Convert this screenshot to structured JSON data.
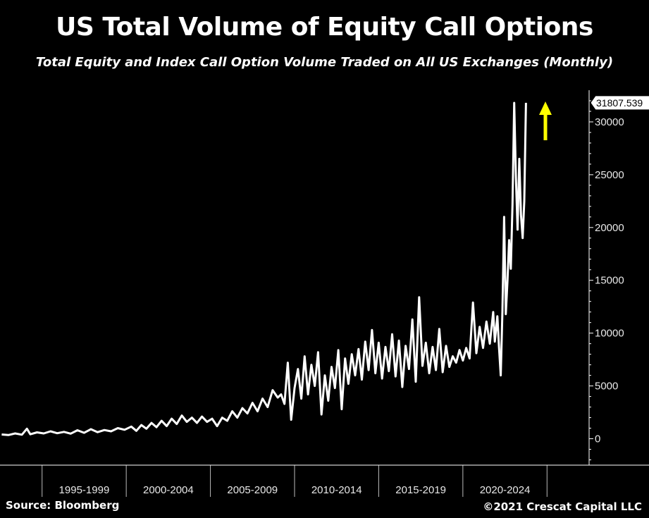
{
  "title": "US Total Volume of Equity Call Options",
  "subtitle": "Total Equity and Index Call Option Volume Traded on All US Exchanges (Monthly)",
  "source": "Source: Bloomberg",
  "copyright": "©2021 Crescat Capital LLC",
  "colors": {
    "background": "#000000",
    "line": "#ffffff",
    "arrow": "#ffff00",
    "axis": "#ffffff"
  },
  "chart_data": {
    "type": "line",
    "x_unit": "year (decimal, monthly points)",
    "xlim": [
      1990.8,
      2025.8
    ],
    "ylim": [
      -2500,
      33000
    ],
    "y_ticks": [
      0,
      5000,
      10000,
      15000,
      20000,
      25000,
      30000
    ],
    "y_tick_labels": [
      "0",
      "5000",
      "10000",
      "15000",
      "20000",
      "25000",
      "30000"
    ],
    "x_periods": [
      {
        "label": "1995-1999",
        "start": 1993.3,
        "end": 1998.3
      },
      {
        "label": "2000-2004",
        "start": 1998.3,
        "end": 2003.3
      },
      {
        "label": "2005-2009",
        "start": 2003.3,
        "end": 2008.3
      },
      {
        "label": "2010-2014",
        "start": 2008.3,
        "end": 2013.3
      },
      {
        "label": "2015-2019",
        "start": 2013.3,
        "end": 2018.3
      },
      {
        "label": "2020-2024",
        "start": 2018.3,
        "end": 2023.3
      }
    ],
    "last_value_label": "31807.539",
    "annotation": "yellow upward arrow",
    "grid": false,
    "series": [
      {
        "values": [
          [
            1990.9,
            400
          ],
          [
            1991.3,
            350
          ],
          [
            1991.7,
            500
          ],
          [
            1992.1,
            380
          ],
          [
            1992.4,
            950
          ],
          [
            1992.6,
            420
          ],
          [
            1993.0,
            600
          ],
          [
            1993.4,
            500
          ],
          [
            1993.8,
            700
          ],
          [
            1994.2,
            520
          ],
          [
            1994.6,
            650
          ],
          [
            1995.0,
            480
          ],
          [
            1995.4,
            800
          ],
          [
            1995.8,
            560
          ],
          [
            1996.2,
            900
          ],
          [
            1996.6,
            620
          ],
          [
            1997.0,
            820
          ],
          [
            1997.4,
            700
          ],
          [
            1997.8,
            1000
          ],
          [
            1998.2,
            850
          ],
          [
            1998.6,
            1150
          ],
          [
            1998.9,
            750
          ],
          [
            1999.2,
            1300
          ],
          [
            1999.5,
            950
          ],
          [
            1999.8,
            1500
          ],
          [
            2000.1,
            1100
          ],
          [
            2000.4,
            1700
          ],
          [
            2000.7,
            1200
          ],
          [
            2001.0,
            1900
          ],
          [
            2001.3,
            1400
          ],
          [
            2001.6,
            2200
          ],
          [
            2001.9,
            1600
          ],
          [
            2002.2,
            2000
          ],
          [
            2002.5,
            1500
          ],
          [
            2002.8,
            2100
          ],
          [
            2003.1,
            1600
          ],
          [
            2003.4,
            1900
          ],
          [
            2003.7,
            1200
          ],
          [
            2004.0,
            2000
          ],
          [
            2004.3,
            1700
          ],
          [
            2004.6,
            2600
          ],
          [
            2004.9,
            2000
          ],
          [
            2005.2,
            2900
          ],
          [
            2005.5,
            2400
          ],
          [
            2005.8,
            3400
          ],
          [
            2006.1,
            2600
          ],
          [
            2006.4,
            3800
          ],
          [
            2006.7,
            3000
          ],
          [
            2007.0,
            4600
          ],
          [
            2007.3,
            3900
          ],
          [
            2007.5,
            4200
          ],
          [
            2007.7,
            3300
          ],
          [
            2007.9,
            7200
          ],
          [
            2008.1,
            1800
          ],
          [
            2008.3,
            4800
          ],
          [
            2008.5,
            6600
          ],
          [
            2008.7,
            3800
          ],
          [
            2008.9,
            7800
          ],
          [
            2009.1,
            4200
          ],
          [
            2009.3,
            7000
          ],
          [
            2009.5,
            5000
          ],
          [
            2009.7,
            8200
          ],
          [
            2009.9,
            2300
          ],
          [
            2010.1,
            6000
          ],
          [
            2010.3,
            3600
          ],
          [
            2010.5,
            6800
          ],
          [
            2010.7,
            4800
          ],
          [
            2010.9,
            8400
          ],
          [
            2011.1,
            2800
          ],
          [
            2011.3,
            7600
          ],
          [
            2011.5,
            5200
          ],
          [
            2011.7,
            8000
          ],
          [
            2011.9,
            6000
          ],
          [
            2012.1,
            8500
          ],
          [
            2012.3,
            5600
          ],
          [
            2012.5,
            9200
          ],
          [
            2012.7,
            6500
          ],
          [
            2012.9,
            10300
          ],
          [
            2013.1,
            6200
          ],
          [
            2013.3,
            9100
          ],
          [
            2013.5,
            5700
          ],
          [
            2013.7,
            8700
          ],
          [
            2013.9,
            6400
          ],
          [
            2014.1,
            9900
          ],
          [
            2014.3,
            5900
          ],
          [
            2014.5,
            9300
          ],
          [
            2014.7,
            4900
          ],
          [
            2014.9,
            8800
          ],
          [
            2015.1,
            6600
          ],
          [
            2015.3,
            11300
          ],
          [
            2015.5,
            5400
          ],
          [
            2015.7,
            13400
          ],
          [
            2015.9,
            6900
          ],
          [
            2016.1,
            9100
          ],
          [
            2016.3,
            6200
          ],
          [
            2016.5,
            8700
          ],
          [
            2016.7,
            6500
          ],
          [
            2016.9,
            10400
          ],
          [
            2017.1,
            6300
          ],
          [
            2017.3,
            8800
          ],
          [
            2017.5,
            6800
          ],
          [
            2017.7,
            7800
          ],
          [
            2017.9,
            7200
          ],
          [
            2018.1,
            8400
          ],
          [
            2018.3,
            7400
          ],
          [
            2018.5,
            8600
          ],
          [
            2018.7,
            7600
          ],
          [
            2018.9,
            12900
          ],
          [
            2019.1,
            8100
          ],
          [
            2019.3,
            10600
          ],
          [
            2019.5,
            8600
          ],
          [
            2019.7,
            11100
          ],
          [
            2019.9,
            9000
          ],
          [
            2020.1,
            12000
          ],
          [
            2020.2,
            9200
          ],
          [
            2020.35,
            11600
          ],
          [
            2020.45,
            8600
          ],
          [
            2020.55,
            6000
          ],
          [
            2020.65,
            12100
          ],
          [
            2020.75,
            21000
          ],
          [
            2020.85,
            11800
          ],
          [
            2020.95,
            15000
          ],
          [
            2021.05,
            18800
          ],
          [
            2021.15,
            16100
          ],
          [
            2021.25,
            22200
          ],
          [
            2021.35,
            31800
          ],
          [
            2021.45,
            24800
          ],
          [
            2021.55,
            19800
          ],
          [
            2021.65,
            26500
          ],
          [
            2021.75,
            21200
          ],
          [
            2021.85,
            19000
          ],
          [
            2021.95,
            22500
          ],
          [
            2022.05,
            31807.539
          ]
        ]
      }
    ]
  }
}
